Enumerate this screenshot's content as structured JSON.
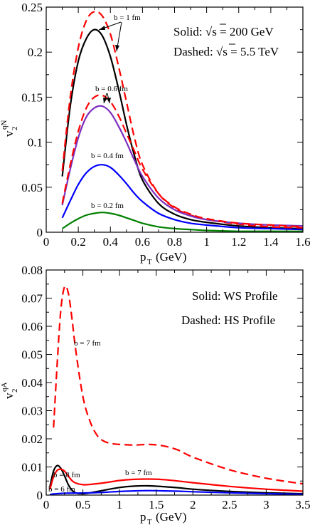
{
  "chart_data": [
    {
      "type": "line",
      "ylabel_main": "v",
      "ylabel_sub": "2",
      "ylabel_sup": "qN",
      "xlabel_main": "p",
      "xlabel_sub": "T",
      "xlabel_unit": "(GeV)",
      "xlim": [
        0,
        1.6
      ],
      "ylim": [
        0,
        0.25
      ],
      "xticks": [
        "0",
        "0.2",
        "0.4",
        "0.6",
        "0.8",
        "1",
        "1.2",
        "1.4",
        "1.6"
      ],
      "yticks": [
        "0",
        "0.05",
        "0.1",
        "0.15",
        "0.2",
        "0.25"
      ],
      "legend": [
        "Solid: √s  = 200 GeV",
        "Dashed: √s  = 5.5 TeV"
      ],
      "annotations": [
        "b = 1 fm",
        "b = 0.6 fm",
        "b = 0.4 fm",
        "b = 0.2 fm"
      ],
      "series": [
        {
          "label": "b = 1 fm solid",
          "color": "#000000",
          "dashed": false,
          "x": [
            0.1,
            0.15,
            0.2,
            0.25,
            0.3,
            0.35,
            0.4,
            0.45,
            0.5,
            0.55,
            0.6,
            0.7,
            0.8,
            0.9,
            1.0,
            1.2,
            1.4,
            1.6
          ],
          "y": [
            0.062,
            0.14,
            0.19,
            0.215,
            0.225,
            0.218,
            0.195,
            0.16,
            0.12,
            0.085,
            0.058,
            0.032,
            0.02,
            0.014,
            0.011,
            0.007,
            0.005,
            0.004
          ]
        },
        {
          "label": "b = 1 fm dashed",
          "color": "#ff0000",
          "dashed": true,
          "x": [
            0.1,
            0.15,
            0.2,
            0.25,
            0.3,
            0.35,
            0.4,
            0.45,
            0.5,
            0.55,
            0.6,
            0.7,
            0.8,
            0.9,
            1.0,
            1.2,
            1.4,
            1.6
          ],
          "y": [
            0.068,
            0.15,
            0.205,
            0.235,
            0.245,
            0.24,
            0.22,
            0.185,
            0.145,
            0.105,
            0.075,
            0.043,
            0.027,
            0.019,
            0.014,
            0.009,
            0.006,
            0.005
          ]
        },
        {
          "label": "b = 0.6 fm solid",
          "color": "#7b2fbe",
          "dashed": false,
          "x": [
            0.1,
            0.15,
            0.2,
            0.25,
            0.3,
            0.35,
            0.4,
            0.45,
            0.5,
            0.55,
            0.6,
            0.7,
            0.8,
            0.9,
            1.0,
            1.2,
            1.4,
            1.6
          ],
          "y": [
            0.03,
            0.07,
            0.105,
            0.128,
            0.138,
            0.14,
            0.133,
            0.118,
            0.1,
            0.08,
            0.062,
            0.038,
            0.025,
            0.018,
            0.014,
            0.01,
            0.008,
            0.007
          ]
        },
        {
          "label": "b = 0.6 fm dashed",
          "color": "#ff0000",
          "dashed": true,
          "x": [
            0.1,
            0.15,
            0.2,
            0.25,
            0.3,
            0.35,
            0.4,
            0.45,
            0.5,
            0.55,
            0.6,
            0.7,
            0.8,
            0.9,
            1.0,
            1.2,
            1.4,
            1.6
          ],
          "y": [
            0.032,
            0.075,
            0.112,
            0.138,
            0.15,
            0.152,
            0.145,
            0.13,
            0.11,
            0.09,
            0.07,
            0.043,
            0.028,
            0.02,
            0.015,
            0.01,
            0.008,
            0.006
          ]
        },
        {
          "label": "b = 0.4 fm",
          "color": "#0000ff",
          "dashed": false,
          "x": [
            0.1,
            0.15,
            0.2,
            0.25,
            0.3,
            0.35,
            0.4,
            0.45,
            0.5,
            0.55,
            0.6,
            0.7,
            0.8,
            0.9,
            1.0,
            1.2,
            1.4,
            1.6
          ],
          "y": [
            0.016,
            0.035,
            0.053,
            0.066,
            0.073,
            0.075,
            0.072,
            0.064,
            0.054,
            0.043,
            0.034,
            0.021,
            0.014,
            0.01,
            0.008,
            0.005,
            0.004,
            0.003
          ]
        },
        {
          "label": "b = 0.2 fm",
          "color": "#008000",
          "dashed": false,
          "x": [
            0.1,
            0.15,
            0.2,
            0.25,
            0.3,
            0.35,
            0.4,
            0.45,
            0.5,
            0.55,
            0.6,
            0.7,
            0.8,
            0.9,
            1.0,
            1.2,
            1.4,
            1.6
          ],
          "y": [
            0.004,
            0.01,
            0.015,
            0.019,
            0.021,
            0.022,
            0.021,
            0.019,
            0.016,
            0.013,
            0.01,
            0.006,
            0.004,
            0.003,
            0.002,
            0.001,
            0.001,
            0.001
          ]
        }
      ]
    },
    {
      "type": "line",
      "ylabel_main": "v",
      "ylabel_sub": "2",
      "ylabel_sup": "qA",
      "xlabel_main": "p",
      "xlabel_sub": "T",
      "xlabel_unit": "(GeV)",
      "xlim": [
        0,
        3.5
      ],
      "ylim": [
        0,
        0.08
      ],
      "xticks": [
        "0",
        "0.5",
        "1",
        "1.5",
        "2",
        "2.5",
        "3",
        "3.5"
      ],
      "yticks": [
        "0",
        "0.01",
        "0.02",
        "0.03",
        "0.04",
        "0.05",
        "0.06",
        "0.07",
        "0.08"
      ],
      "legend": [
        "Solid: WS Profile",
        "Dashed: HS Profile"
      ],
      "annotations": [
        "b = 7 fm",
        "b = 8 fm",
        "b = 7 fm",
        "b = 6 fm"
      ],
      "series": [
        {
          "label": "b = 7 fm dashed",
          "color": "#ff0000",
          "dashed": true,
          "x": [
            0.1,
            0.15,
            0.2,
            0.25,
            0.3,
            0.35,
            0.4,
            0.5,
            0.6,
            0.7,
            0.8,
            0.9,
            1.0,
            1.2,
            1.4,
            1.6,
            1.8,
            2.0,
            2.5,
            3.0,
            3.5
          ],
          "y": [
            0.024,
            0.047,
            0.066,
            0.074,
            0.072,
            0.063,
            0.052,
            0.035,
            0.026,
            0.021,
            0.019,
            0.0183,
            0.018,
            0.0178,
            0.018,
            0.0175,
            0.016,
            0.0135,
            0.009,
            0.006,
            0.004
          ]
        },
        {
          "label": "b = 8 fm",
          "color": "#000000",
          "dashed": false,
          "x": [
            0.05,
            0.1,
            0.15,
            0.2,
            0.25,
            0.3,
            0.35,
            0.4,
            0.5,
            0.6,
            0.8,
            1.0,
            1.2,
            1.4,
            1.6,
            1.8,
            2.0,
            2.5,
            3.0,
            3.5
          ],
          "y": [
            0.003,
            0.0085,
            0.0105,
            0.0095,
            0.0068,
            0.0038,
            0.0018,
            0.0008,
            0.0005,
            0.0008,
            0.0018,
            0.0027,
            0.0032,
            0.0033,
            0.003,
            0.0026,
            0.0021,
            0.0013,
            0.0008,
            0.0005
          ]
        },
        {
          "label": "b = 7 fm solid",
          "color": "#ff0000",
          "dashed": false,
          "x": [
            0.05,
            0.1,
            0.15,
            0.2,
            0.25,
            0.3,
            0.35,
            0.4,
            0.5,
            0.6,
            0.8,
            1.0,
            1.2,
            1.4,
            1.6,
            1.8,
            2.0,
            2.5,
            3.0,
            3.5
          ],
          "y": [
            0.002,
            0.0065,
            0.0088,
            0.0092,
            0.0085,
            0.0068,
            0.0052,
            0.0043,
            0.0037,
            0.0038,
            0.0044,
            0.0052,
            0.0056,
            0.0057,
            0.0055,
            0.005,
            0.0044,
            0.0031,
            0.0021,
            0.0014
          ]
        },
        {
          "label": "b = 6 fm",
          "color": "#0000ff",
          "dashed": false,
          "x": [
            0.05,
            0.1,
            0.2,
            0.3,
            0.4,
            0.6,
            0.8,
            1.0,
            1.2,
            1.4,
            1.6,
            1.8,
            2.0,
            2.5,
            3.0,
            3.5
          ],
          "y": [
            0.0002,
            0.0004,
            0.0006,
            0.0007,
            0.0007,
            0.0008,
            0.001,
            0.0013,
            0.0015,
            0.0016,
            0.0015,
            0.0014,
            0.0012,
            0.0008,
            0.0005,
            0.0003
          ]
        }
      ]
    }
  ]
}
